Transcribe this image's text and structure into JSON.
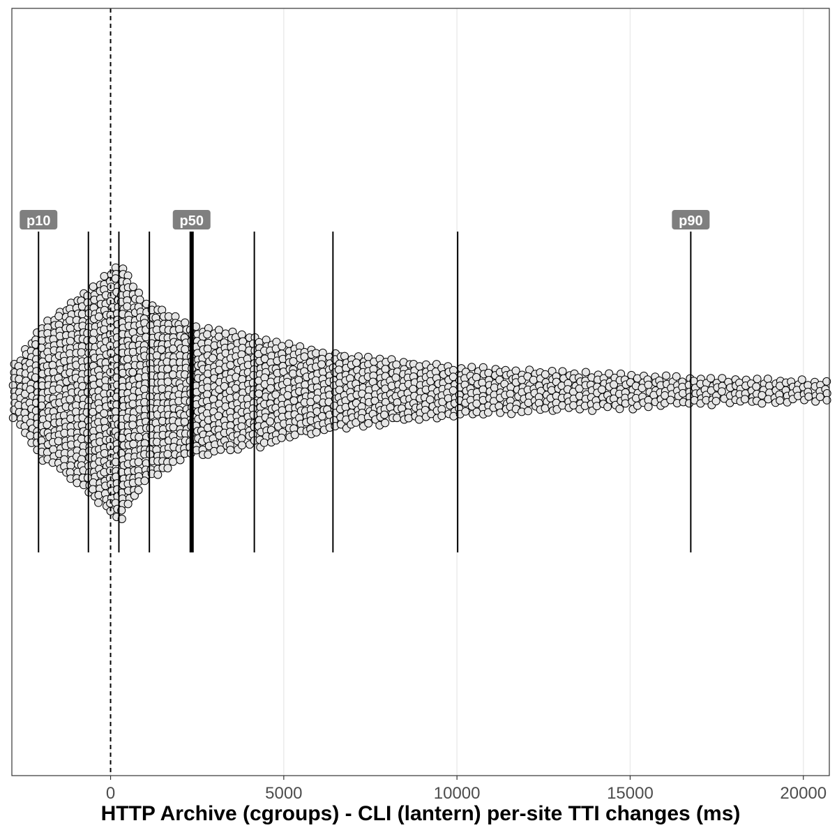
{
  "chart_data": {
    "type": "scatter",
    "subtype": "beeswarm",
    "title": "",
    "xlabel": "HTTP Archive (cgroups) - CLI (lantern) per-site TTI changes (ms)",
    "ylabel": "",
    "xlim": [
      -2850,
      20750
    ],
    "x_ticks": [
      0,
      5000,
      10000,
      15000,
      20000
    ],
    "x_tick_labels": [
      "0",
      "5000",
      "10000",
      "15000",
      "20000"
    ],
    "grid": "vertical major lines only",
    "zero_line": {
      "x": 0,
      "style": "dashed"
    },
    "percentile_lines": [
      {
        "x": -2080,
        "label": "p10"
      },
      {
        "x": -640,
        "label": ""
      },
      {
        "x": 240,
        "label": ""
      },
      {
        "x": 1120,
        "label": ""
      },
      {
        "x": 2340,
        "label": "p50",
        "emphasis": "bold"
      },
      {
        "x": 4150,
        "label": ""
      },
      {
        "x": 6420,
        "label": ""
      },
      {
        "x": 10020,
        "label": ""
      },
      {
        "x": 16750,
        "label": "p90"
      }
    ],
    "point_fill": "#e6e6e6",
    "point_stroke": "#000000",
    "density_profile": [
      {
        "x": -2850,
        "half_width": 35
      },
      {
        "x": -2000,
        "half_width": 95
      },
      {
        "x": -1000,
        "half_width": 135
      },
      {
        "x": -600,
        "half_width": 145
      },
      {
        "x": 300,
        "half_width": 185
      },
      {
        "x": 1000,
        "half_width": 130
      },
      {
        "x": 2300,
        "half_width": 95
      },
      {
        "x": 4100,
        "half_width": 80
      },
      {
        "x": 6400,
        "half_width": 55
      },
      {
        "x": 10000,
        "half_width": 35
      },
      {
        "x": 16700,
        "half_width": 20
      },
      {
        "x": 20750,
        "half_width": 15
      }
    ]
  },
  "colors": {
    "panel_border": "#333333",
    "grid": "#ebebeb",
    "label_bg": "#7f7f7f",
    "line": "#000000"
  }
}
